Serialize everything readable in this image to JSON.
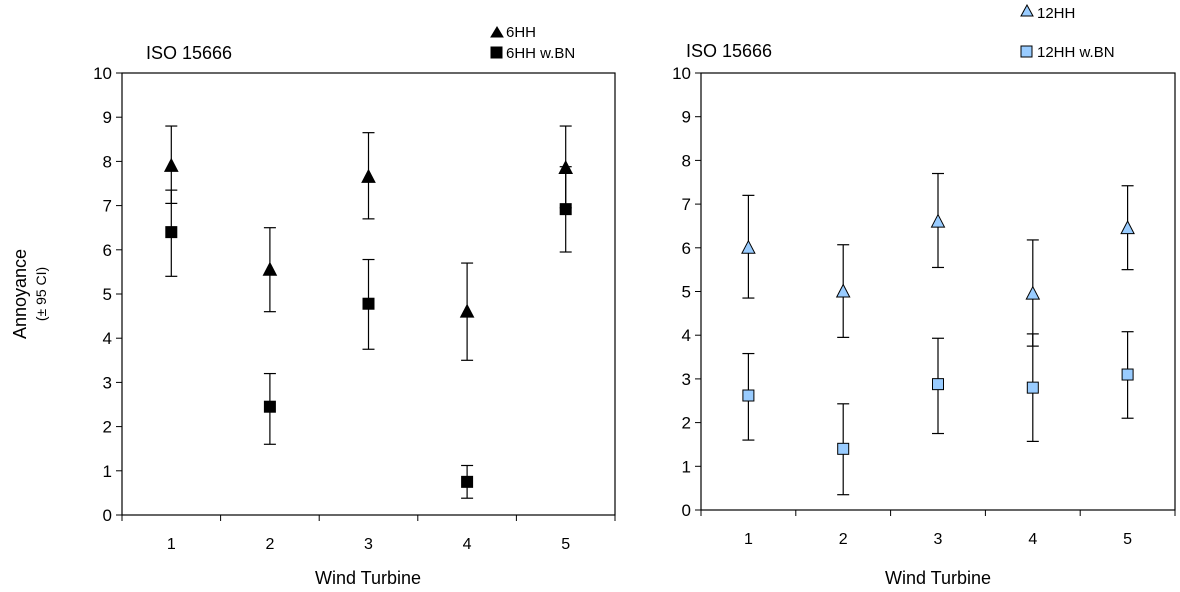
{
  "chart_data": [
    {
      "type": "scatter",
      "title": "ISO 15666",
      "xlabel": "Wind Turbine",
      "ylabel": "Annoyance",
      "ylabel_sub": "(± 95 CI)",
      "categories": [
        "1",
        "2",
        "3",
        "4",
        "5"
      ],
      "ylim": [
        0,
        10
      ],
      "yticks": [
        "0",
        "1",
        "2",
        "3",
        "4",
        "5",
        "6",
        "7",
        "8",
        "9",
        "10"
      ],
      "grid": false,
      "legend": "top-right",
      "series": [
        {
          "name": "6HH",
          "marker": "triangle",
          "color": "#000000",
          "values": [
            7.9,
            5.55,
            7.65,
            4.6,
            7.85
          ],
          "ci_low": [
            7.05,
            4.6,
            6.7,
            3.5,
            6.95
          ],
          "ci_high": [
            8.8,
            6.5,
            8.65,
            5.7,
            8.8
          ]
        },
        {
          "name": "6HH w.BN",
          "marker": "square",
          "color": "#000000",
          "values": [
            6.4,
            2.45,
            4.78,
            0.75,
            6.92
          ],
          "ci_low": [
            5.4,
            1.6,
            3.75,
            0.38,
            5.95
          ],
          "ci_high": [
            7.35,
            3.2,
            5.78,
            1.12,
            7.88
          ]
        }
      ]
    },
    {
      "type": "scatter",
      "title": "ISO 15666",
      "xlabel": "Wind Turbine",
      "ylabel": "",
      "categories": [
        "1",
        "2",
        "3",
        "4",
        "5"
      ],
      "ylim": [
        0,
        10
      ],
      "yticks": [
        "0",
        "1",
        "2",
        "3",
        "4",
        "5",
        "6",
        "7",
        "8",
        "9",
        "10"
      ],
      "grid": false,
      "legend": "top-right",
      "series": [
        {
          "name": "12HH",
          "marker": "triangle",
          "color": "#99ccff",
          "values": [
            6.0,
            5.0,
            6.6,
            4.95,
            6.45
          ],
          "ci_low": [
            4.85,
            3.95,
            5.55,
            3.75,
            5.5
          ],
          "ci_high": [
            7.2,
            6.07,
            7.7,
            6.18,
            7.42
          ]
        },
        {
          "name": "12HH w.BN",
          "marker": "square",
          "color": "#99ccff",
          "values": [
            2.62,
            1.4,
            2.88,
            2.8,
            3.1
          ],
          "ci_low": [
            1.6,
            0.35,
            1.75,
            1.57,
            2.1
          ],
          "ci_high": [
            3.58,
            2.43,
            3.93,
            4.03,
            4.08
          ]
        }
      ]
    }
  ]
}
